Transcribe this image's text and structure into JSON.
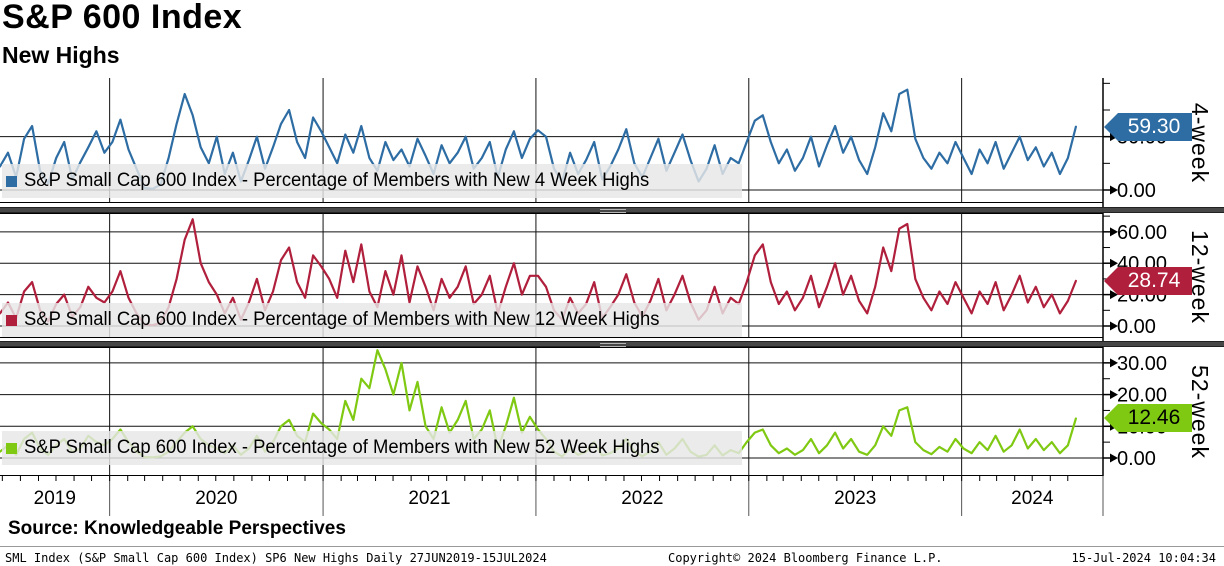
{
  "header": {
    "title": "S&P 600 Index",
    "subtitle": "New Highs"
  },
  "source_line": "Source: Knowledgeable Perspectives",
  "footer": {
    "left": "SML Index (S&P Small Cap 600 Index) SP6 New Highs  Daily 27JUN2019-15JUL2024",
    "center": "Copyright© 2024 Bloomberg Finance L.P.",
    "right": "15-Jul-2024 10:04:34"
  },
  "chart_data": {
    "type": "line",
    "title": "S&P 600 Index New Highs",
    "x": {
      "start_date": "2019-06-27",
      "end_date": "2024-07-15",
      "year_labels": [
        "2019",
        "2020",
        "2021",
        "2022",
        "2023",
        "2024"
      ],
      "minor_ticks": "monthly"
    },
    "grid": true,
    "legend_position": "bottom-left-overlay",
    "panels": [
      {
        "id": "4-week",
        "axis_label": "4-week",
        "legend": "S&P Small Cap 600 Index - Percentage of Members with New 4 Week Highs",
        "color": "#2e6da4",
        "tag_bg": "#2e6da4",
        "tag_fg": "#ffffff",
        "last_value": 59.3,
        "last_label": "59.30",
        "ylim": [
          0,
          105
        ],
        "yticks": [
          0,
          50
        ],
        "ytick_labels": [
          "0.00",
          "50.00"
        ],
        "minor_step": 25,
        "values": [
          22,
          35,
          12,
          48,
          60,
          18,
          6,
          30,
          45,
          10,
          26,
          40,
          55,
          35,
          45,
          66,
          38,
          20,
          2,
          1,
          5,
          30,
          62,
          90,
          70,
          40,
          25,
          50,
          15,
          35,
          8,
          28,
          50,
          20,
          40,
          62,
          75,
          45,
          30,
          68,
          55,
          40,
          25,
          52,
          35,
          60,
          30,
          18,
          45,
          28,
          38,
          22,
          48,
          32,
          15,
          42,
          25,
          35,
          50,
          20,
          30,
          45,
          12,
          38,
          55,
          30,
          48,
          56,
          50,
          20,
          8,
          35,
          15,
          28,
          45,
          10,
          22,
          38,
          57,
          25,
          12,
          30,
          48,
          18,
          35,
          52,
          28,
          8,
          20,
          42,
          15,
          30,
          25,
          45,
          65,
          70,
          45,
          25,
          38,
          18,
          30,
          50,
          22,
          42,
          60,
          35,
          50,
          28,
          15,
          40,
          72,
          55,
          90,
          94,
          48,
          30,
          20,
          35,
          25,
          45,
          30,
          15,
          38,
          25,
          45,
          20,
          35,
          50,
          28,
          40,
          22,
          35,
          15,
          30,
          59.3
        ]
      },
      {
        "id": "12-week",
        "axis_label": "12-week",
        "legend": "S&P Small Cap 600 Index - Percentage of Members with New 12 Week Highs",
        "color": "#b01f3c",
        "tag_bg": "#b01f3c",
        "tag_fg": "#ffffff",
        "last_value": 28.74,
        "last_label": "28.74",
        "ylim": [
          0,
          72
        ],
        "yticks": [
          0,
          20,
          40,
          60
        ],
        "ytick_labels": [
          "0.00",
          "20.00",
          "40.00",
          "60.00"
        ],
        "minor_step": 10,
        "values": [
          8,
          15,
          5,
          22,
          28,
          10,
          3,
          14,
          20,
          6,
          12,
          25,
          18,
          15,
          22,
          35,
          18,
          8,
          1,
          0.5,
          2,
          12,
          30,
          55,
          68,
          40,
          28,
          20,
          8,
          18,
          4,
          15,
          30,
          10,
          22,
          42,
          50,
          28,
          18,
          45,
          38,
          30,
          18,
          48,
          28,
          52,
          22,
          12,
          35,
          20,
          45,
          15,
          38,
          25,
          10,
          30,
          18,
          25,
          38,
          14,
          20,
          32,
          8,
          25,
          40,
          20,
          32,
          32,
          25,
          10,
          4,
          18,
          8,
          14,
          28,
          5,
          12,
          20,
          33,
          15,
          6,
          16,
          30,
          10,
          20,
          32,
          15,
          4,
          10,
          25,
          8,
          18,
          14,
          28,
          45,
          52,
          28,
          14,
          22,
          10,
          18,
          32,
          12,
          25,
          40,
          20,
          32,
          16,
          8,
          25,
          50,
          35,
          62,
          65,
          30,
          18,
          10,
          22,
          14,
          28,
          18,
          8,
          22,
          14,
          28,
          10,
          20,
          32,
          15,
          25,
          12,
          20,
          8,
          16,
          28.74
        ]
      },
      {
        "id": "52-week",
        "axis_label": "52-week",
        "legend": "S&P Small Cap 600 Index - Percentage of Members with New 52 Week Highs",
        "color": "#7fc913",
        "tag_bg": "#7fc913",
        "tag_fg": "#000000",
        "last_value": 12.46,
        "last_label": "12.46",
        "ylim": [
          0,
          35
        ],
        "yticks": [
          0,
          10,
          20,
          30
        ],
        "ytick_labels": [
          "0.00",
          "10.00",
          "20.00",
          "30.00"
        ],
        "minor_step": 5,
        "values": [
          2,
          4,
          1,
          6,
          8,
          3,
          1,
          4,
          6,
          2,
          3,
          7,
          5,
          4,
          6,
          9,
          5,
          2,
          0.3,
          0.2,
          0.5,
          2,
          5,
          8,
          10,
          6,
          4,
          3,
          1.5,
          4,
          1,
          3,
          7,
          2,
          5,
          10,
          12,
          7,
          5,
          14,
          11,
          9,
          6,
          18,
          12,
          25,
          22,
          34,
          28,
          20,
          30,
          15,
          24,
          10,
          6,
          16,
          8,
          12,
          18,
          6,
          9,
          15,
          3,
          10,
          19,
          8,
          13,
          9,
          6,
          2,
          0.5,
          3,
          1,
          2,
          5,
          0.8,
          1.5,
          3,
          6,
          2,
          0.6,
          2,
          5,
          1,
          3,
          6,
          2,
          0.4,
          1,
          4,
          0.8,
          2.5,
          1.5,
          5,
          8,
          9,
          4,
          1.5,
          3,
          1,
          2.5,
          6,
          1.5,
          4,
          8,
          3,
          6,
          2,
          1,
          4,
          10,
          7,
          15,
          16,
          5,
          2.5,
          1.2,
          3.5,
          2,
          6,
          3,
          1.5,
          5,
          2.5,
          7,
          2,
          4,
          9,
          3,
          6,
          2.5,
          5,
          1.5,
          4,
          12.46
        ]
      }
    ]
  }
}
